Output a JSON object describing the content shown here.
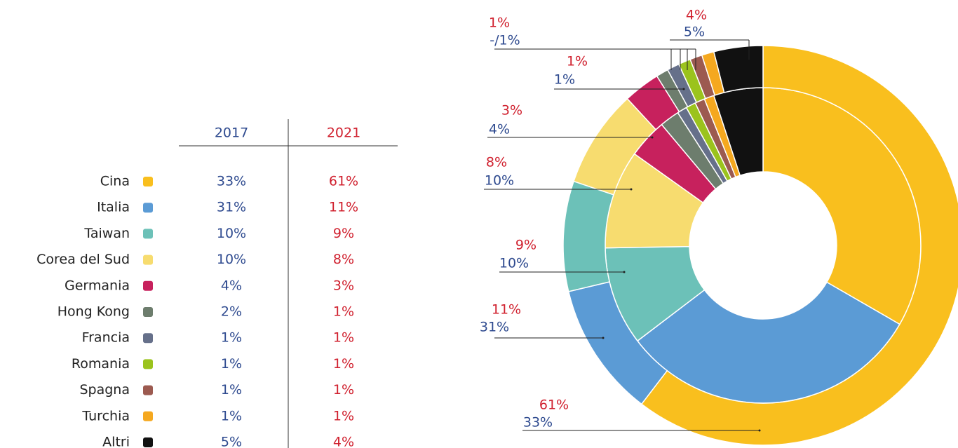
{
  "chart_data": {
    "type": "nested-donut",
    "categories": [
      "Cina",
      "Italia",
      "Taiwan",
      "Corea del Sud",
      "Germania",
      "Hong Kong",
      "Francia",
      "Romania",
      "Spagna",
      "Turchia",
      "Altri"
    ],
    "colors": [
      "#f9bf1e",
      "#5b9bd5",
      "#6cc1b8",
      "#f7dc6f",
      "#c7215d",
      "#6d7d6d",
      "#66708a",
      "#9bc31d",
      "#9c5a50",
      "#f5a81f",
      "#111111"
    ],
    "series": [
      {
        "name": "2017",
        "color": "#2e4a8f",
        "ring": "inner",
        "values": [
          33,
          31,
          10,
          10,
          4,
          2,
          1,
          1,
          1,
          1,
          5
        ],
        "value_labels": [
          "33%",
          "31%",
          "10%",
          "10%",
          "4%",
          "2%",
          "1%",
          "1%",
          "1%",
          "1%",
          "5%"
        ]
      },
      {
        "name": "2021",
        "color": "#d0202e",
        "ring": "outer",
        "values": [
          61,
          11,
          9,
          8,
          3,
          1,
          1,
          1,
          1,
          1,
          4
        ],
        "value_labels": [
          "61%",
          "11%",
          "9%",
          "8%",
          "3%",
          "1%",
          "1%",
          "1%",
          "1%",
          "1%",
          "4%"
        ]
      }
    ],
    "callouts": [
      {
        "top": "61%",
        "bottom": "33%"
      },
      {
        "top": "11%",
        "bottom": "31%"
      },
      {
        "top": "9%",
        "bottom": "10%"
      },
      {
        "top": "8%",
        "bottom": "10%"
      },
      {
        "top": "3%",
        "bottom": "4%"
      },
      {
        "top": "1%",
        "bottom": "1%"
      },
      {
        "top": "1%",
        "bottom": "-/1%"
      },
      {
        "top": "4%",
        "bottom": "5%"
      }
    ]
  }
}
